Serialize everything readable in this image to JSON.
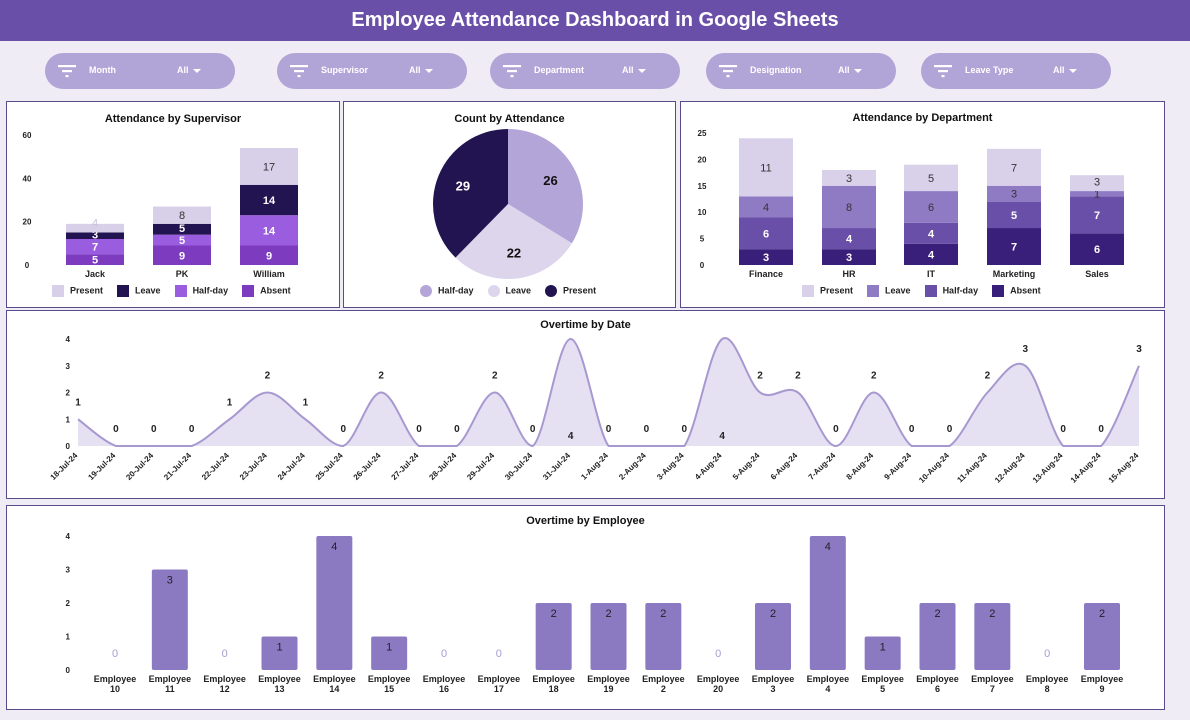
{
  "header": {
    "title": "Employee Attendance Dashboard in Google Sheets"
  },
  "filters": [
    {
      "label": "Month",
      "value": "All"
    },
    {
      "label": "Supervisor",
      "value": "All"
    },
    {
      "label": "Department",
      "value": "All"
    },
    {
      "label": "Designation",
      "value": "All"
    },
    {
      "label": "Leave Type",
      "value": "All"
    }
  ],
  "colors": {
    "header": "#6a4fa8",
    "pill": "#b1a4d6",
    "background": "#efecf6"
  },
  "chart_data": [
    {
      "type": "bar",
      "stacked": true,
      "title": "Attendance by Supervisor",
      "categories": [
        "Jack",
        "PK",
        "William"
      ],
      "yticks": [
        "0",
        "20",
        "40",
        "60"
      ],
      "ylim": [
        0,
        60
      ],
      "legend": "bottom",
      "series": [
        {
          "name": "Absent",
          "color": "#7d3cc0",
          "values": [
            5,
            9,
            9
          ]
        },
        {
          "name": "Half-day",
          "color": "#9b5de0",
          "values": [
            7,
            5,
            14
          ]
        },
        {
          "name": "Leave",
          "color": "#221450",
          "values": [
            3,
            5,
            14
          ]
        },
        {
          "name": "Present",
          "color": "#d8d0e8",
          "values": [
            4,
            8,
            17
          ]
        }
      ],
      "legend_order": [
        "Present",
        "Leave",
        "Half-day",
        "Absent"
      ]
    },
    {
      "type": "pie",
      "title": "Count by Attendance",
      "legend": "bottom",
      "slices": [
        {
          "name": "Half-day",
          "value": 26,
          "color": "#b3a5d8"
        },
        {
          "name": "Leave",
          "value": 22,
          "color": "#dcd5ec"
        },
        {
          "name": "Present",
          "value": 29,
          "color": "#221450"
        }
      ]
    },
    {
      "type": "bar",
      "stacked": true,
      "title": "Attendance by Department",
      "categories": [
        "Finance",
        "HR",
        "IT",
        "Marketing",
        "Sales"
      ],
      "yticks": [
        "0",
        "5",
        "10",
        "15",
        "20",
        "25"
      ],
      "ylim": [
        0,
        25
      ],
      "legend": "bottom",
      "series": [
        {
          "name": "Absent",
          "color": "#3a1f7a",
          "values": [
            3,
            3,
            4,
            7,
            6
          ]
        },
        {
          "name": "Half-day",
          "color": "#6a4fa8",
          "values": [
            6,
            4,
            4,
            5,
            7
          ]
        },
        {
          "name": "Leave",
          "color": "#8e7bc4",
          "values": [
            4,
            8,
            6,
            3,
            1
          ]
        },
        {
          "name": "Present",
          "color": "#d9d0ea",
          "values": [
            11,
            3,
            5,
            7,
            3
          ]
        }
      ],
      "legend_order": [
        "Present",
        "Leave",
        "Half-day",
        "Absent"
      ]
    },
    {
      "type": "area",
      "title": "Overtime by  Date",
      "yticks": [
        "0",
        "1",
        "2",
        "3",
        "4"
      ],
      "ylim": [
        0,
        4
      ],
      "color": "#a898d0",
      "x": [
        "18-Jul-24",
        "19-Jul-24",
        "20-Jul-24",
        "21-Jul-24",
        "22-Jul-24",
        "23-Jul-24",
        "24-Jul-24",
        "25-Jul-24",
        "26-Jul-24",
        "27-Jul-24",
        "28-Jul-24",
        "29-Jul-24",
        "30-Jul-24",
        "31-Jul-24",
        "1-Aug-24",
        "2-Aug-24",
        "3-Aug-24",
        "4-Aug-24",
        "5-Aug-24",
        "6-Aug-24",
        "7-Aug-24",
        "8-Aug-24",
        "9-Aug-24",
        "10-Aug-24",
        "11-Aug-24",
        "12-Aug-24",
        "13-Aug-24",
        "14-Aug-24",
        "15-Aug-24"
      ],
      "values": [
        1,
        0,
        0,
        0,
        1,
        2,
        1,
        0,
        2,
        0,
        0,
        2,
        0,
        4,
        0,
        0,
        0,
        4,
        2,
        2,
        0,
        2,
        0,
        0,
        2,
        3,
        0,
        0,
        3
      ]
    },
    {
      "type": "bar",
      "title": "Overtime by Employee",
      "yticks": [
        "0",
        "1",
        "2",
        "3",
        "4"
      ],
      "ylim": [
        0,
        4
      ],
      "color": "#8b79c2",
      "categories": [
        "Employee 10",
        "Employee 11",
        "Employee 12",
        "Employee 13",
        "Employee 14",
        "Employee 15",
        "Employee 16",
        "Employee 17",
        "Employee 18",
        "Employee 19",
        "Employee 2",
        "Employee 20",
        "Employee 3",
        "Employee 4",
        "Employee 5",
        "Employee 6",
        "Employee 7",
        "Employee 8",
        "Employee 9"
      ],
      "values": [
        0,
        3,
        0,
        1,
        4,
        1,
        0,
        0,
        2,
        2,
        2,
        0,
        2,
        4,
        1,
        2,
        2,
        0,
        2
      ]
    }
  ]
}
